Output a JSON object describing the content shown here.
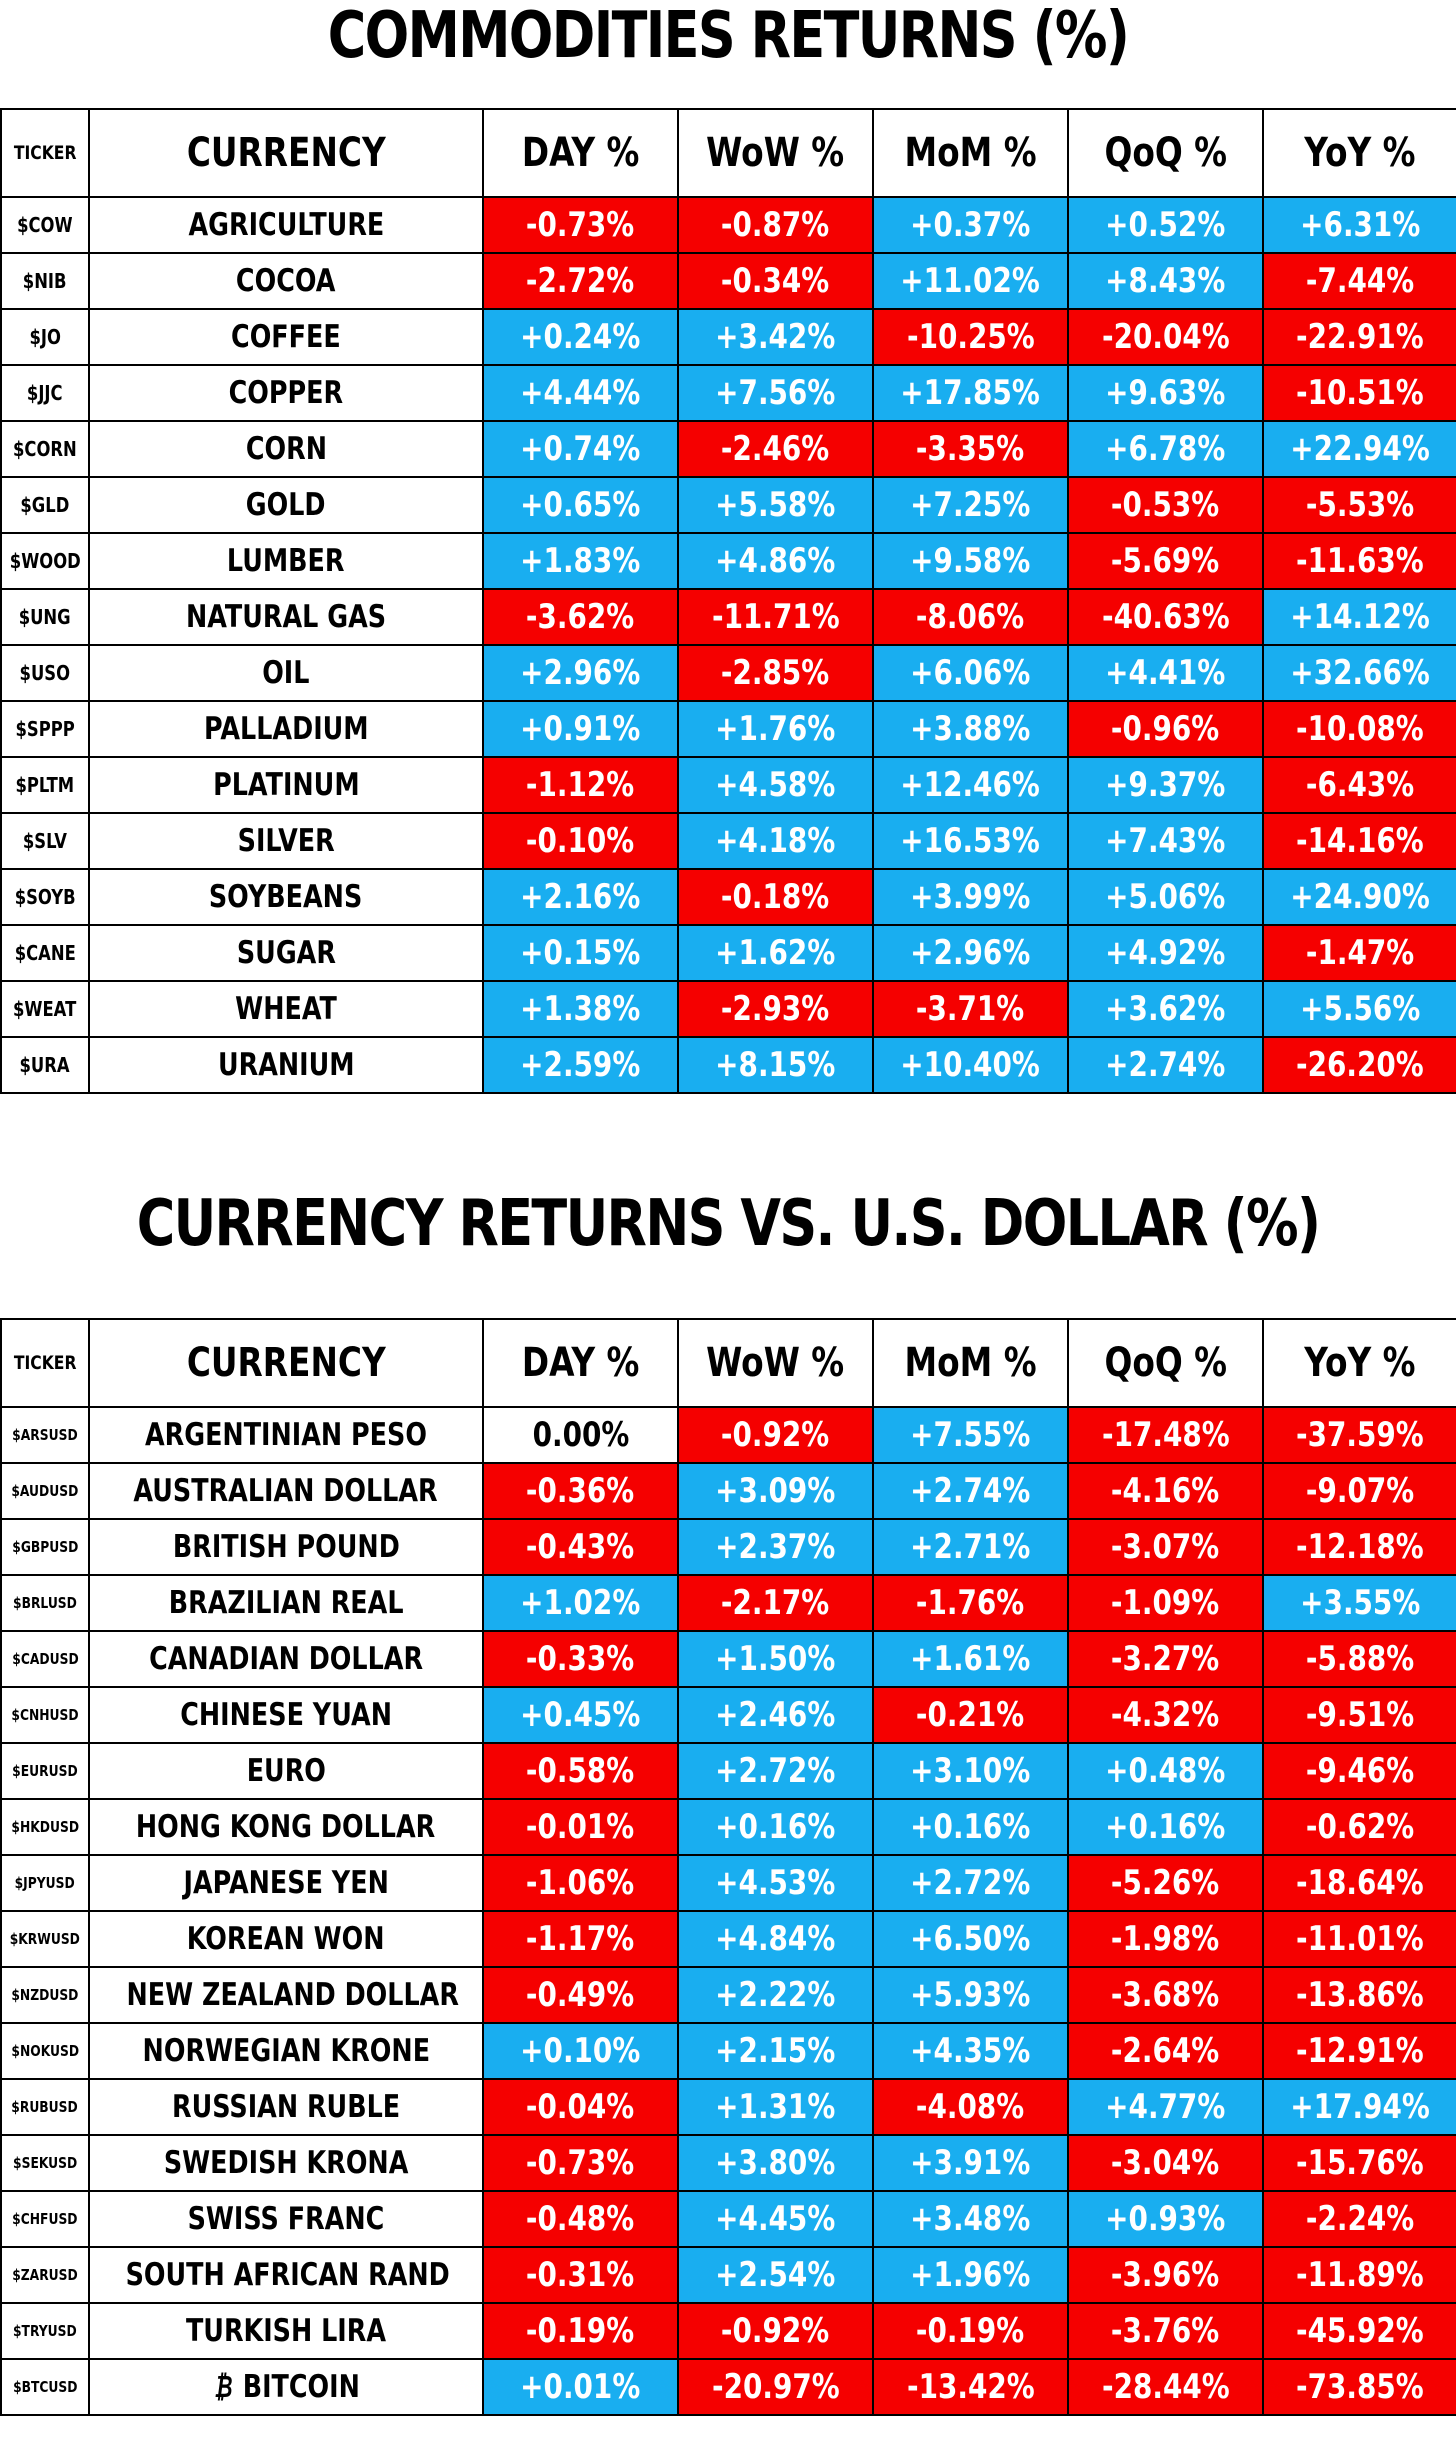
{
  "commodities": {
    "title": "COMMODITIES RETURNS (%)",
    "columns": [
      "TICKER",
      "CURRENCY",
      "DAY %",
      "WoW %",
      "MoM %",
      "QoQ %",
      "YoY %"
    ],
    "rows": [
      {
        "ticker": "$COW",
        "name": "AGRICULTURE",
        "values": [
          "-0.73%",
          "-0.87%",
          "+0.37%",
          "+0.52%",
          "+6.31%"
        ]
      },
      {
        "ticker": "$NIB",
        "name": "COCOA",
        "values": [
          "-2.72%",
          "-0.34%",
          "+11.02%",
          "+8.43%",
          "-7.44%"
        ]
      },
      {
        "ticker": "$JO",
        "name": "COFFEE",
        "values": [
          "+0.24%",
          "+3.42%",
          "-10.25%",
          "-20.04%",
          "-22.91%"
        ]
      },
      {
        "ticker": "$JJC",
        "name": "COPPER",
        "values": [
          "+4.44%",
          "+7.56%",
          "+17.85%",
          "+9.63%",
          "-10.51%"
        ]
      },
      {
        "ticker": "$CORN",
        "name": "CORN",
        "values": [
          "+0.74%",
          "-2.46%",
          "-3.35%",
          "+6.78%",
          "+22.94%"
        ]
      },
      {
        "ticker": "$GLD",
        "name": "GOLD",
        "values": [
          "+0.65%",
          "+5.58%",
          "+7.25%",
          "-0.53%",
          "-5.53%"
        ]
      },
      {
        "ticker": "$WOOD",
        "name": "LUMBER",
        "values": [
          "+1.83%",
          "+4.86%",
          "+9.58%",
          "-5.69%",
          "-11.63%"
        ]
      },
      {
        "ticker": "$UNG",
        "name": "NATURAL GAS",
        "values": [
          "-3.62%",
          "-11.71%",
          "-8.06%",
          "-40.63%",
          "+14.12%"
        ]
      },
      {
        "ticker": "$USO",
        "name": "OIL",
        "values": [
          "+2.96%",
          "-2.85%",
          "+6.06%",
          "+4.41%",
          "+32.66%"
        ]
      },
      {
        "ticker": "$SPPP",
        "name": "PALLADIUM",
        "values": [
          "+0.91%",
          "+1.76%",
          "+3.88%",
          "-0.96%",
          "-10.08%"
        ]
      },
      {
        "ticker": "$PLTM",
        "name": "PLATINUM",
        "values": [
          "-1.12%",
          "+4.58%",
          "+12.46%",
          "+9.37%",
          "-6.43%"
        ]
      },
      {
        "ticker": "$SLV",
        "name": "SILVER",
        "values": [
          "-0.10%",
          "+4.18%",
          "+16.53%",
          "+7.43%",
          "-14.16%"
        ]
      },
      {
        "ticker": "$SOYB",
        "name": "SOYBEANS",
        "values": [
          "+2.16%",
          "-0.18%",
          "+3.99%",
          "+5.06%",
          "+24.90%"
        ]
      },
      {
        "ticker": "$CANE",
        "name": "SUGAR",
        "values": [
          "+0.15%",
          "+1.62%",
          "+2.96%",
          "+4.92%",
          "-1.47%"
        ]
      },
      {
        "ticker": "$WEAT",
        "name": "WHEAT",
        "values": [
          "+1.38%",
          "-2.93%",
          "-3.71%",
          "+3.62%",
          "+5.56%"
        ]
      },
      {
        "ticker": "$URA",
        "name": "URANIUM",
        "values": [
          "+2.59%",
          "+8.15%",
          "+10.40%",
          "+2.74%",
          "-26.20%"
        ]
      }
    ]
  },
  "currencies": {
    "title": "CURRENCY RETURNS VS. U.S. DOLLAR (%)",
    "columns": [
      "TICKER",
      "CURRENCY",
      "DAY %",
      "WoW %",
      "MoM %",
      "QoQ %",
      "YoY %"
    ],
    "rows": [
      {
        "ticker": "$ARSUSD",
        "name": "ARGENTINIAN PESO",
        "values": [
          "0.00%",
          "-0.92%",
          "+7.55%",
          "-17.48%",
          "-37.59%"
        ]
      },
      {
        "ticker": "$AUDUSD",
        "name": "AUSTRALIAN DOLLAR",
        "values": [
          "-0.36%",
          "+3.09%",
          "+2.74%",
          "-4.16%",
          "-9.07%"
        ]
      },
      {
        "ticker": "$GBPUSD",
        "name": "BRITISH POUND",
        "values": [
          "-0.43%",
          "+2.37%",
          "+2.71%",
          "-3.07%",
          "-12.18%"
        ]
      },
      {
        "ticker": "$BRLUSD",
        "name": "BRAZILIAN REAL",
        "values": [
          "+1.02%",
          "-2.17%",
          "-1.76%",
          "-1.09%",
          "+3.55%"
        ]
      },
      {
        "ticker": "$CADUSD",
        "name": "CANADIAN DOLLAR",
        "values": [
          "-0.33%",
          "+1.50%",
          "+1.61%",
          "-3.27%",
          "-5.88%"
        ]
      },
      {
        "ticker": "$CNHUSD",
        "name": "CHINESE YUAN",
        "values": [
          "+0.45%",
          "+2.46%",
          "-0.21%",
          "-4.32%",
          "-9.51%"
        ]
      },
      {
        "ticker": "$EURUSD",
        "name": "EURO",
        "values": [
          "-0.58%",
          "+2.72%",
          "+3.10%",
          "+0.48%",
          "-9.46%"
        ]
      },
      {
        "ticker": "$HKDUSD",
        "name": "HONG KONG DOLLAR",
        "values": [
          "-0.01%",
          "+0.16%",
          "+0.16%",
          "+0.16%",
          "-0.62%"
        ]
      },
      {
        "ticker": "$JPYUSD",
        "name": "JAPANESE YEN",
        "values": [
          "-1.06%",
          "+4.53%",
          "+2.72%",
          "-5.26%",
          "-18.64%"
        ]
      },
      {
        "ticker": "$KRWUSD",
        "name": "KOREAN WON",
        "values": [
          "-1.17%",
          "+4.84%",
          "+6.50%",
          "-1.98%",
          "-11.01%"
        ]
      },
      {
        "ticker": "$NZDUSD",
        "name": "NEW ZEALAND DOLLAR",
        "values": [
          "-0.49%",
          "+2.22%",
          "+5.93%",
          "-3.68%",
          "-13.86%"
        ]
      },
      {
        "ticker": "$NOKUSD",
        "name": "NORWEGIAN KRONE",
        "values": [
          "+0.10%",
          "+2.15%",
          "+4.35%",
          "-2.64%",
          "-12.91%"
        ]
      },
      {
        "ticker": "$RUBUSD",
        "name": "RUSSIAN RUBLE",
        "values": [
          "-0.04%",
          "+1.31%",
          "-4.08%",
          "+4.77%",
          "+17.94%"
        ]
      },
      {
        "ticker": "$SEKUSD",
        "name": "SWEDISH KRONA",
        "values": [
          "-0.73%",
          "+3.80%",
          "+3.91%",
          "-3.04%",
          "-15.76%"
        ]
      },
      {
        "ticker": "$CHFUSD",
        "name": "SWISS FRANC",
        "values": [
          "-0.48%",
          "+4.45%",
          "+3.48%",
          "+0.93%",
          "-2.24%"
        ]
      },
      {
        "ticker": "$ZARUSD",
        "name": "SOUTH AFRICAN RAND",
        "values": [
          "-0.31%",
          "+2.54%",
          "+1.96%",
          "-3.96%",
          "-11.89%"
        ]
      },
      {
        "ticker": "$TRYUSD",
        "name": "TURKISH LIRA",
        "values": [
          "-0.19%",
          "-0.92%",
          "-0.19%",
          "-3.76%",
          "-45.92%"
        ]
      },
      {
        "ticker": "$BTCUSD",
        "name": "BITCOIN",
        "icon": "bitcoin-icon",
        "values": [
          "+0.01%",
          "-20.97%",
          "-13.42%",
          "-28.44%",
          "-73.85%"
        ]
      }
    ]
  },
  "colors": {
    "positive": "#19aef0",
    "negative": "#f50000",
    "zero": "#ffffff"
  }
}
